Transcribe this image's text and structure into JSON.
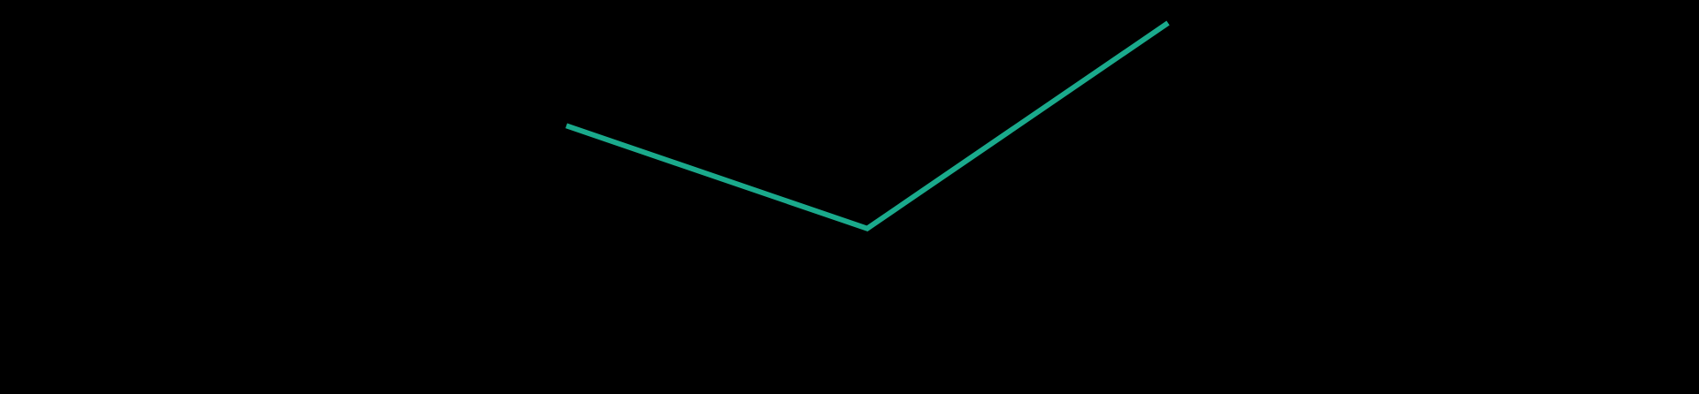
{
  "chart_data": {
    "type": "line",
    "x": [
      0,
      1,
      2
    ],
    "series": [
      {
        "values": [
          2,
          1,
          3
        ],
        "color": "#1aaa8c"
      }
    ],
    "ylim": [
      0,
      3
    ],
    "grid": false,
    "axes_visible": false,
    "legend": "none"
  },
  "colors": {
    "background": "#000000",
    "line": "#1aaa8c"
  }
}
